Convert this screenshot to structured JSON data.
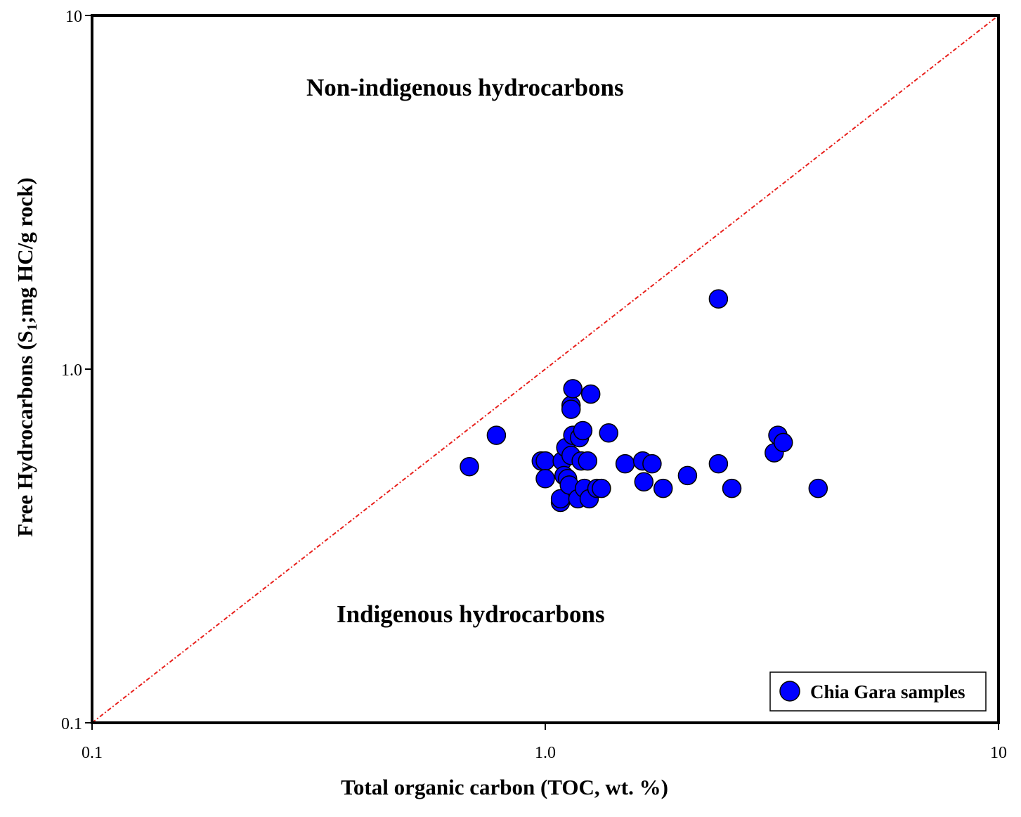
{
  "chart_data": {
    "type": "scatter",
    "xlabel": "Total organic carbon (TOC, wt. %)",
    "ylabel": {
      "prefix": "Free Hydrocarbons (S",
      "subscript": "1",
      "suffix": ";mg HC/g rock)"
    },
    "x_scale": "log",
    "y_scale": "log",
    "xlim": [
      0.1,
      10
    ],
    "ylim": [
      0.1,
      10
    ],
    "x_ticks": [
      {
        "value": 0.1,
        "label": "0.1"
      },
      {
        "value": 1,
        "label": "1.0"
      },
      {
        "value": 10,
        "label": "10"
      }
    ],
    "y_ticks": [
      {
        "value": 0.1,
        "label": "0.1"
      },
      {
        "value": 1,
        "label": "1.0"
      },
      {
        "value": 10,
        "label": "10"
      }
    ],
    "grid": false,
    "legend_position": "bottom-right",
    "annotations": {
      "upper": "Non-indigenous hydrocarbons",
      "lower": "Indigenous hydrocarbons"
    },
    "reference_line": {
      "style": "dash-dot",
      "color": "#e8201c",
      "from": [
        0.1,
        0.1
      ],
      "to": [
        10,
        10
      ]
    },
    "series": [
      {
        "name": "Chia Gara samples",
        "color": "#0000ff",
        "points": [
          [
            0.68,
            0.53
          ],
          [
            0.78,
            0.65
          ],
          [
            0.98,
            0.55
          ],
          [
            1.0,
            0.55
          ],
          [
            1.0,
            0.49
          ],
          [
            1.08,
            0.42
          ],
          [
            1.08,
            0.43
          ],
          [
            1.09,
            0.55
          ],
          [
            1.1,
            0.5
          ],
          [
            1.11,
            0.6
          ],
          [
            1.12,
            0.49
          ],
          [
            1.13,
            0.47
          ],
          [
            1.14,
            0.57
          ],
          [
            1.14,
            0.79
          ],
          [
            1.14,
            0.77
          ],
          [
            1.15,
            0.65
          ],
          [
            1.15,
            0.88
          ],
          [
            1.18,
            0.43
          ],
          [
            1.19,
            0.64
          ],
          [
            1.2,
            0.55
          ],
          [
            1.21,
            0.67
          ],
          [
            1.22,
            0.46
          ],
          [
            1.24,
            0.55
          ],
          [
            1.25,
            0.43
          ],
          [
            1.26,
            0.85
          ],
          [
            1.3,
            0.46
          ],
          [
            1.33,
            0.46
          ],
          [
            1.38,
            0.66
          ],
          [
            1.5,
            0.54
          ],
          [
            1.64,
            0.55
          ],
          [
            1.65,
            0.48
          ],
          [
            1.72,
            0.54
          ],
          [
            1.82,
            0.46
          ],
          [
            2.06,
            0.5
          ],
          [
            2.41,
            1.58
          ],
          [
            2.41,
            0.54
          ],
          [
            2.58,
            0.46
          ],
          [
            3.2,
            0.58
          ],
          [
            3.26,
            0.65
          ],
          [
            3.35,
            0.62
          ],
          [
            4.0,
            0.46
          ]
        ]
      }
    ]
  }
}
